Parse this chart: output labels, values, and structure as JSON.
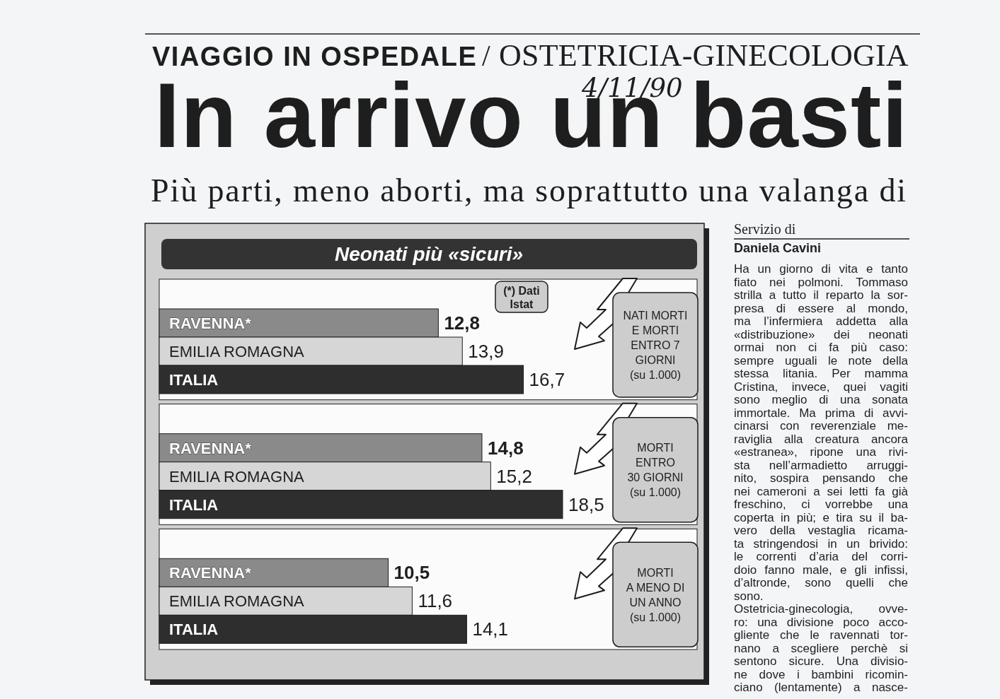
{
  "chart_data": {
    "type": "bar",
    "orientation": "horizontal",
    "title": "Neonati più «sicuri»",
    "categories": [
      "NATI MORTI\nE MORTI\nENTRO 7\nGIORNI\n(su 1.000)",
      "MORTI\nENTRO\n30 GIORNI\n(su 1.000)",
      "MORTI\nA MENO DI\nUN ANNO\n(su 1.000)"
    ],
    "series": [
      {
        "name": "RAVENNA*",
        "color": "#8a8a8a",
        "values": [
          12.8,
          14.8,
          10.5
        ],
        "value_labels": [
          "12,8",
          "14,8",
          "10,5"
        ]
      },
      {
        "name": "EMILIA ROMAGNA",
        "color": "#d6d6d6",
        "values": [
          13.9,
          15.2,
          11.6
        ],
        "value_labels": [
          "13,9",
          "15,2",
          "11,6"
        ]
      },
      {
        "name": "ITALIA",
        "color": "#2e2e2e",
        "values": [
          16.7,
          18.5,
          14.1
        ],
        "value_labels": [
          "16,7",
          "18,5",
          "14,1"
        ]
      }
    ],
    "tick_labels": "y",
    "annotations": [
      "(*) Dati\nIstat",
      "VIAGGIO IN OSPEDALE",
      "/",
      "OSTETRICIA-GINECOLOGIA",
      "4/11/90",
      "In arrivo un basti",
      "Più parti, meno aborti, ma soprattutto una valanga di",
      "Servizio di",
      "Daniela Cavini",
      "Ha un giorno di vita e tanto",
      "fiato nei polmoni. Tommaso",
      "strilla a tutto il reparto la sor-",
      "presa di essere al mondo,",
      "ma l’infermiera addetta alla",
      "«distribuzione» dei neonati",
      "ormai non ci fa più caso:",
      "sempre uguali le note della",
      "stessa litania. Per mamma",
      "Cristina, invece, quei vagiti",
      "sono meglio di una sonata",
      "immortale. Ma prima di avvi-",
      "cinarsi con reverenziale me-",
      "raviglia alla creatura ancora",
      "«estranea», ripone una rivi-",
      "sta nell’armadietto arruggi-",
      "nito, sospira pensando che",
      "nei cameroni a sei letti fa già",
      "freschino, ci vorrebbe una",
      "coperta in più; e tira su il ba-",
      "vero della vestaglia ricama-",
      "ta stringendosi in un brivido:",
      "le correnti d’aria del corri-",
      "doio fanno male, e gli infissi,",
      "d’altronde, sono quelli che",
      "sono.",
      "Ostetricia-ginecologia, ovve-",
      "ro: una divisione poco acco-",
      "gliente che le ravennati tor-",
      "nano a scegliere perchè si",
      "sentono sicure. Una divisio-",
      "ne dove i bambini ricomin-",
      "ciano (lentamente) a nasce-"
    ]
  }
}
